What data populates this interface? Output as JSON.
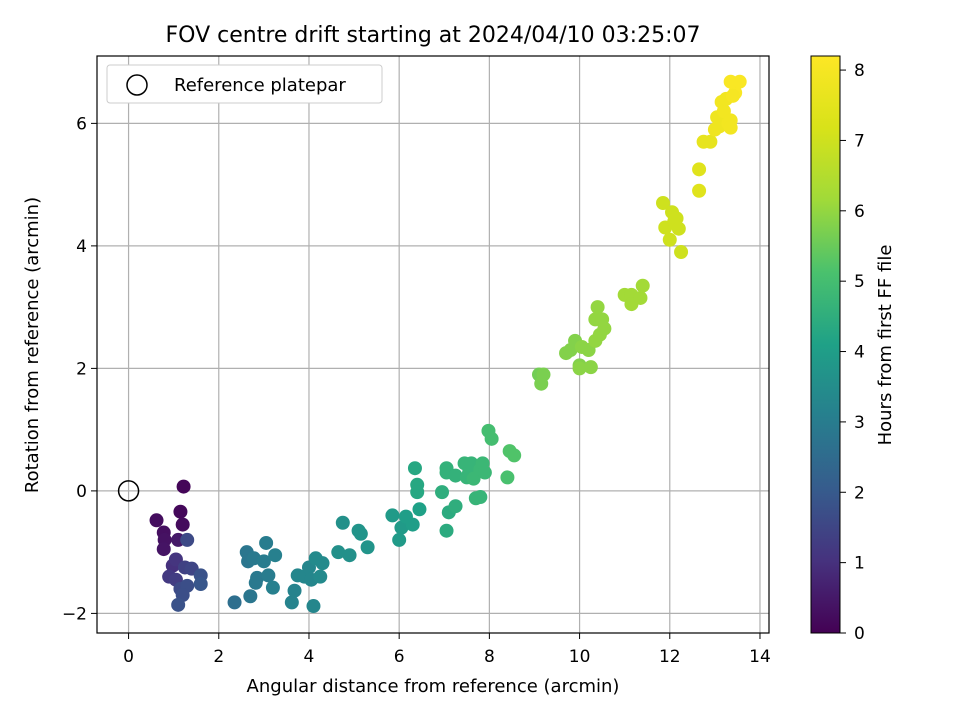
{
  "chart_data": {
    "type": "scatter",
    "title": "FOV centre drift starting at 2024/04/10 03:25:07",
    "xlabel": "Angular distance from reference (arcmin)",
    "ylabel": "Rotation from reference (arcmin)",
    "xlim": [
      -0.7,
      14.2
    ],
    "ylim": [
      -2.32,
      7.1
    ],
    "xticks": [
      "0",
      "2",
      "4",
      "6",
      "8",
      "10",
      "12",
      "14"
    ],
    "yticks": [
      "−2",
      "0",
      "2",
      "4",
      "6"
    ],
    "grid": true,
    "legend": {
      "placement": "top-left",
      "entries": [
        "Reference platepar"
      ]
    },
    "reference_point": {
      "x": 0,
      "y": 0
    },
    "colorbar": {
      "label": "Hours from first FF file",
      "range": [
        0,
        8.2
      ],
      "ticks": [
        "0",
        "1",
        "2",
        "3",
        "4",
        "5",
        "6",
        "7",
        "8"
      ],
      "colormap": "viridis"
    },
    "points": [
      {
        "x": 1.22,
        "y": 0.07,
        "c": 0.1
      },
      {
        "x": 1.15,
        "y": -0.34,
        "c": 0.15
      },
      {
        "x": 1.2,
        "y": -0.55,
        "c": 0.2
      },
      {
        "x": 0.62,
        "y": -0.48,
        "c": 0.25
      },
      {
        "x": 0.78,
        "y": -0.68,
        "c": 0.3
      },
      {
        "x": 0.8,
        "y": -0.8,
        "c": 0.35
      },
      {
        "x": 0.78,
        "y": -0.95,
        "c": 0.4
      },
      {
        "x": 1.1,
        "y": -0.8,
        "c": 0.5
      },
      {
        "x": 1.3,
        "y": -0.8,
        "c": 1.6
      },
      {
        "x": 0.98,
        "y": -1.22,
        "c": 1.0
      },
      {
        "x": 1.05,
        "y": -1.12,
        "c": 1.1
      },
      {
        "x": 0.9,
        "y": -1.4,
        "c": 1.2
      },
      {
        "x": 1.05,
        "y": -1.45,
        "c": 1.3
      },
      {
        "x": 1.25,
        "y": -1.25,
        "c": 1.4
      },
      {
        "x": 1.4,
        "y": -1.27,
        "c": 1.5
      },
      {
        "x": 1.15,
        "y": -1.6,
        "c": 1.6
      },
      {
        "x": 1.3,
        "y": -1.55,
        "c": 1.7
      },
      {
        "x": 1.6,
        "y": -1.38,
        "c": 1.8
      },
      {
        "x": 1.6,
        "y": -1.52,
        "c": 1.9
      },
      {
        "x": 1.2,
        "y": -1.7,
        "c": 1.7
      },
      {
        "x": 1.1,
        "y": -1.86,
        "c": 1.8
      },
      {
        "x": 2.35,
        "y": -1.82,
        "c": 2.6
      },
      {
        "x": 2.62,
        "y": -1.0,
        "c": 2.8
      },
      {
        "x": 2.65,
        "y": -1.15,
        "c": 2.8
      },
      {
        "x": 2.78,
        "y": -1.1,
        "c": 2.9
      },
      {
        "x": 2.7,
        "y": -1.72,
        "c": 2.8
      },
      {
        "x": 2.85,
        "y": -1.42,
        "c": 2.9
      },
      {
        "x": 2.82,
        "y": -1.5,
        "c": 2.9
      },
      {
        "x": 3.0,
        "y": -1.15,
        "c": 3.0
      },
      {
        "x": 3.05,
        "y": -0.85,
        "c": 3.0
      },
      {
        "x": 3.1,
        "y": -1.38,
        "c": 3.0
      },
      {
        "x": 3.2,
        "y": -1.58,
        "c": 3.1
      },
      {
        "x": 3.25,
        "y": -1.05,
        "c": 3.1
      },
      {
        "x": 3.62,
        "y": -1.82,
        "c": 3.2
      },
      {
        "x": 3.68,
        "y": -1.63,
        "c": 3.2
      },
      {
        "x": 3.75,
        "y": -1.38,
        "c": 3.3
      },
      {
        "x": 3.9,
        "y": -1.4,
        "c": 3.3
      },
      {
        "x": 4.0,
        "y": -1.25,
        "c": 3.3
      },
      {
        "x": 4.05,
        "y": -1.45,
        "c": 3.3
      },
      {
        "x": 4.1,
        "y": -1.88,
        "c": 3.3
      },
      {
        "x": 4.15,
        "y": -1.1,
        "c": 3.4
      },
      {
        "x": 4.25,
        "y": -1.4,
        "c": 3.4
      },
      {
        "x": 4.3,
        "y": -1.18,
        "c": 3.4
      },
      {
        "x": 4.75,
        "y": -0.52,
        "c": 3.6
      },
      {
        "x": 4.65,
        "y": -1.0,
        "c": 3.6
      },
      {
        "x": 4.9,
        "y": -1.05,
        "c": 3.6
      },
      {
        "x": 5.1,
        "y": -0.65,
        "c": 3.7
      },
      {
        "x": 5.15,
        "y": -0.7,
        "c": 3.7
      },
      {
        "x": 5.3,
        "y": -0.92,
        "c": 3.7
      },
      {
        "x": 5.85,
        "y": -0.4,
        "c": 3.9
      },
      {
        "x": 6.0,
        "y": -0.8,
        "c": 3.9
      },
      {
        "x": 6.05,
        "y": -0.6,
        "c": 3.9
      },
      {
        "x": 6.15,
        "y": -0.42,
        "c": 4.0
      },
      {
        "x": 6.3,
        "y": -0.55,
        "c": 4.0
      },
      {
        "x": 6.35,
        "y": 0.37,
        "c": 4.3
      },
      {
        "x": 6.4,
        "y": 0.1,
        "c": 4.3
      },
      {
        "x": 6.4,
        "y": -0.02,
        "c": 4.3
      },
      {
        "x": 6.45,
        "y": -0.3,
        "c": 4.1
      },
      {
        "x": 6.95,
        "y": -0.02,
        "c": 4.5
      },
      {
        "x": 7.05,
        "y": 0.3,
        "c": 4.6
      },
      {
        "x": 7.05,
        "y": 0.37,
        "c": 4.6
      },
      {
        "x": 7.1,
        "y": -0.35,
        "c": 4.4
      },
      {
        "x": 7.05,
        "y": -0.65,
        "c": 4.4
      },
      {
        "x": 7.25,
        "y": -0.25,
        "c": 4.5
      },
      {
        "x": 7.25,
        "y": 0.25,
        "c": 4.6
      },
      {
        "x": 7.45,
        "y": 0.45,
        "c": 4.7
      },
      {
        "x": 7.5,
        "y": 0.22,
        "c": 4.7
      },
      {
        "x": 7.55,
        "y": 0.3,
        "c": 4.7
      },
      {
        "x": 7.6,
        "y": 0.45,
        "c": 4.7
      },
      {
        "x": 7.65,
        "y": 0.2,
        "c": 4.8
      },
      {
        "x": 7.7,
        "y": -0.12,
        "c": 4.7
      },
      {
        "x": 7.8,
        "y": -0.1,
        "c": 4.7
      },
      {
        "x": 7.8,
        "y": 0.35,
        "c": 4.8
      },
      {
        "x": 7.85,
        "y": 0.45,
        "c": 4.8
      },
      {
        "x": 7.9,
        "y": 0.3,
        "c": 4.8
      },
      {
        "x": 7.98,
        "y": 0.98,
        "c": 5.0
      },
      {
        "x": 8.05,
        "y": 0.85,
        "c": 5.0
      },
      {
        "x": 8.4,
        "y": 0.22,
        "c": 5.1
      },
      {
        "x": 8.45,
        "y": 0.65,
        "c": 5.2
      },
      {
        "x": 8.55,
        "y": 0.58,
        "c": 5.2
      },
      {
        "x": 9.1,
        "y": 1.9,
        "c": 5.6
      },
      {
        "x": 9.2,
        "y": 1.9,
        "c": 5.7
      },
      {
        "x": 9.15,
        "y": 1.75,
        "c": 5.7
      },
      {
        "x": 9.7,
        "y": 2.25,
        "c": 5.8
      },
      {
        "x": 9.8,
        "y": 2.3,
        "c": 5.8
      },
      {
        "x": 9.9,
        "y": 2.45,
        "c": 5.8
      },
      {
        "x": 10.0,
        "y": 2.05,
        "c": 5.8
      },
      {
        "x": 10.05,
        "y": 2.35,
        "c": 5.9
      },
      {
        "x": 10.0,
        "y": 2.0,
        "c": 5.9
      },
      {
        "x": 10.2,
        "y": 2.3,
        "c": 5.9
      },
      {
        "x": 10.25,
        "y": 2.02,
        "c": 5.9
      },
      {
        "x": 10.35,
        "y": 2.45,
        "c": 6.0
      },
      {
        "x": 10.35,
        "y": 2.8,
        "c": 6.0
      },
      {
        "x": 10.4,
        "y": 3.0,
        "c": 6.0
      },
      {
        "x": 10.45,
        "y": 2.55,
        "c": 6.0
      },
      {
        "x": 10.55,
        "y": 2.65,
        "c": 6.0
      },
      {
        "x": 10.5,
        "y": 2.8,
        "c": 6.0
      },
      {
        "x": 11.0,
        "y": 3.2,
        "c": 6.2
      },
      {
        "x": 11.15,
        "y": 3.2,
        "c": 6.2
      },
      {
        "x": 11.15,
        "y": 3.05,
        "c": 6.2
      },
      {
        "x": 11.35,
        "y": 3.15,
        "c": 6.2
      },
      {
        "x": 11.4,
        "y": 3.35,
        "c": 6.2
      },
      {
        "x": 11.85,
        "y": 4.7,
        "c": 7.0
      },
      {
        "x": 11.9,
        "y": 4.3,
        "c": 7.0
      },
      {
        "x": 12.0,
        "y": 4.1,
        "c": 7.0
      },
      {
        "x": 12.05,
        "y": 4.55,
        "c": 7.0
      },
      {
        "x": 12.1,
        "y": 4.4,
        "c": 7.0
      },
      {
        "x": 12.15,
        "y": 4.45,
        "c": 7.0
      },
      {
        "x": 12.2,
        "y": 4.28,
        "c": 7.0
      },
      {
        "x": 12.25,
        "y": 3.9,
        "c": 7.0
      },
      {
        "x": 12.65,
        "y": 5.25,
        "c": 7.4
      },
      {
        "x": 12.65,
        "y": 4.9,
        "c": 7.4
      },
      {
        "x": 12.75,
        "y": 5.7,
        "c": 7.6
      },
      {
        "x": 12.9,
        "y": 5.7,
        "c": 7.6
      },
      {
        "x": 13.0,
        "y": 5.9,
        "c": 7.8
      },
      {
        "x": 13.05,
        "y": 6.1,
        "c": 7.8
      },
      {
        "x": 13.1,
        "y": 5.95,
        "c": 7.8
      },
      {
        "x": 13.15,
        "y": 6.35,
        "c": 7.9
      },
      {
        "x": 13.2,
        "y": 6.2,
        "c": 7.9
      },
      {
        "x": 13.25,
        "y": 6.4,
        "c": 7.9
      },
      {
        "x": 13.3,
        "y": 6.0,
        "c": 7.9
      },
      {
        "x": 13.35,
        "y": 6.05,
        "c": 7.9
      },
      {
        "x": 13.35,
        "y": 5.93,
        "c": 7.9
      },
      {
        "x": 13.35,
        "y": 6.68,
        "c": 8.1
      },
      {
        "x": 13.45,
        "y": 6.5,
        "c": 8.1
      },
      {
        "x": 13.55,
        "y": 6.68,
        "c": 8.1
      },
      {
        "x": 13.4,
        "y": 6.45,
        "c": 8.0
      }
    ]
  }
}
